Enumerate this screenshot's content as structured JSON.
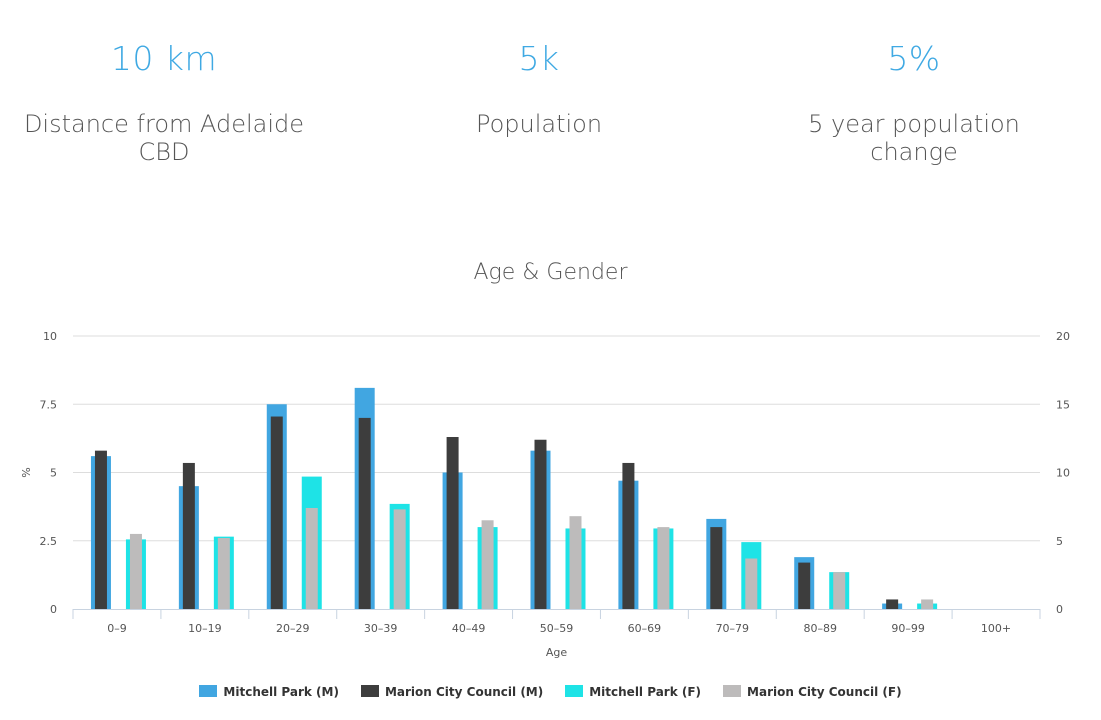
{
  "stats": [
    {
      "value": "10 km",
      "label_lines": [
        "Distance from Adelaide",
        "CBD"
      ]
    },
    {
      "value": "5k",
      "label_lines": [
        "Population"
      ]
    },
    {
      "value": "5%",
      "label_lines": [
        "5 year population",
        "change"
      ]
    }
  ],
  "colors": {
    "stat_value": "#3fa9e3",
    "grid": "#dddddd",
    "axis": "#c8d3e0",
    "tick_text": "#555555"
  },
  "chart_data": {
    "type": "bar",
    "title": "Age & Gender",
    "xlabel": "Age",
    "ylabel": "%",
    "categories": [
      "0–9",
      "10–19",
      "20–29",
      "30–39",
      "40–49",
      "50–59",
      "60–69",
      "70–79",
      "80–89",
      "90–99",
      "100+"
    ],
    "ylim": [
      0,
      10
    ],
    "y_ticks": [
      "0",
      "2.5",
      "5",
      "7.5",
      "10"
    ],
    "y2lim": [
      0,
      20
    ],
    "y2_ticks": [
      "0",
      "5",
      "10",
      "15",
      "20"
    ],
    "grid": true,
    "legend_position": "bottom",
    "series": [
      {
        "name": "Mitchell Park (M)",
        "color": "#41a6e1",
        "group": "male",
        "layer": "back",
        "values": [
          5.6,
          4.5,
          7.5,
          8.1,
          5.0,
          5.8,
          4.7,
          3.3,
          1.9,
          0.2,
          0
        ]
      },
      {
        "name": "Marion City Council (M)",
        "color": "#3d3d3d",
        "group": "male",
        "layer": "front",
        "values": [
          5.8,
          5.35,
          7.05,
          7.0,
          6.3,
          6.2,
          5.35,
          3.0,
          1.7,
          0.35,
          0
        ]
      },
      {
        "name": "Mitchell Park (F)",
        "color": "#1ee3e6",
        "group": "female",
        "layer": "back",
        "values": [
          2.55,
          2.65,
          4.85,
          3.85,
          3.0,
          2.95,
          2.95,
          2.45,
          1.35,
          0.2,
          0
        ]
      },
      {
        "name": "Marion City Council (F)",
        "color": "#bdbbbb",
        "group": "female",
        "layer": "front",
        "values": [
          2.75,
          2.6,
          3.7,
          3.65,
          3.25,
          3.4,
          3.0,
          1.85,
          1.35,
          0.35,
          0
        ]
      }
    ]
  }
}
